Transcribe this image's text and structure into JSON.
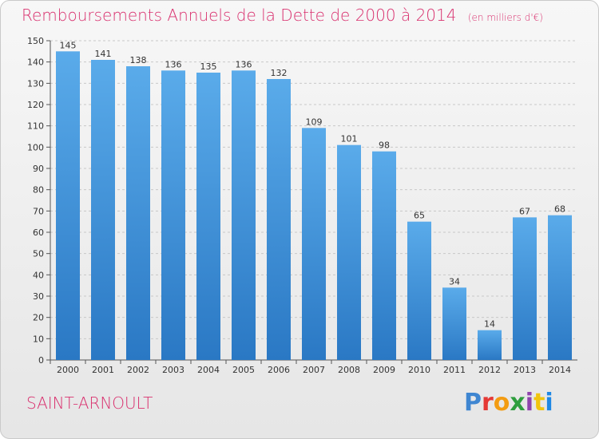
{
  "title": {
    "main": "Remboursements Annuels de la Dette de 2000 à 2014",
    "unit": "(en milliers d'€)"
  },
  "commune": "SAINT-ARNOULT",
  "logo": {
    "text": "Proxiti",
    "colors": [
      "#3f86d1",
      "#e53935",
      "#f39c12",
      "#2e9e3e",
      "#8e44ad",
      "#f1c40f",
      "#1e88e5"
    ]
  },
  "chart_data": {
    "type": "bar",
    "categories": [
      "2000",
      "2001",
      "2002",
      "2003",
      "2004",
      "2005",
      "2006",
      "2007",
      "2008",
      "2009",
      "2010",
      "2011",
      "2012",
      "2013",
      "2014"
    ],
    "values": [
      145,
      141,
      138,
      136,
      135,
      136,
      132,
      109,
      101,
      98,
      65,
      34,
      14,
      67,
      68
    ],
    "ylim": [
      0,
      150
    ],
    "yticks": [
      0,
      10,
      20,
      30,
      40,
      50,
      60,
      70,
      80,
      90,
      100,
      110,
      120,
      130,
      140,
      150
    ],
    "grid": "horizontal dashed",
    "colors": {
      "bar_top": "#5aabea",
      "bar_bottom": "#2a78c4"
    }
  }
}
